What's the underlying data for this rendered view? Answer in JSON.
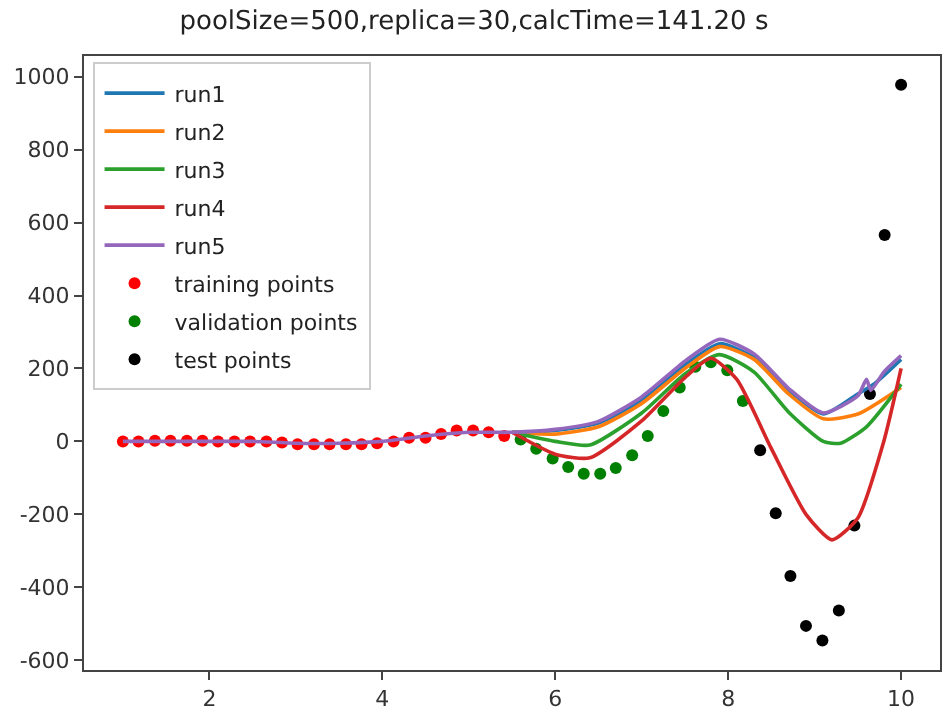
{
  "chart_data": {
    "type": "line",
    "title": "poolSize=500,replica=30,calcTime=141.20 s",
    "xlim": [
      0.55,
      10.45
    ],
    "ylim": [
      -627,
      1057
    ],
    "xticks": [
      2,
      4,
      6,
      8,
      10
    ],
    "yticks": [
      -600,
      -400,
      -200,
      0,
      200,
      400,
      600,
      800,
      1000
    ],
    "legend": "top left",
    "line_style": "solid",
    "series": [
      {
        "name": "run1",
        "color": "#1f77b4",
        "x": [
          5.5,
          6,
          6.5,
          7,
          7.5,
          7.9,
          8.3,
          8.7,
          9.1,
          9.5,
          9.7,
          10
        ],
        "values": [
          25,
          30,
          50,
          113,
          210,
          268,
          230,
          140,
          75,
          130,
          160,
          225
        ]
      },
      {
        "name": "run2",
        "color": "#ff7f0e",
        "x": [
          5.5,
          6,
          6.5,
          7,
          7.5,
          7.9,
          8.3,
          8.7,
          9.1,
          9.5,
          10
        ],
        "values": [
          25,
          20,
          40,
          104,
          200,
          260,
          225,
          130,
          62,
          75,
          148
        ]
      },
      {
        "name": "run3",
        "color": "#2ca02c",
        "x": [
          5.5,
          6,
          6.4,
          7,
          7.5,
          7.9,
          8.3,
          8.7,
          9.1,
          9.3,
          9.6,
          10
        ],
        "values": [
          25,
          0,
          -10,
          78,
          185,
          238,
          190,
          80,
          0,
          -5,
          40,
          157
        ]
      },
      {
        "name": "run4",
        "color": "#d62728",
        "x": [
          5.5,
          6,
          6.4,
          7,
          7.5,
          7.8,
          8.1,
          8.5,
          8.9,
          9.2,
          9.5,
          9.8,
          10
        ],
        "values": [
          25,
          -35,
          -45,
          56,
          175,
          228,
          170,
          -20,
          -200,
          -270,
          -210,
          0,
          200
        ]
      },
      {
        "name": "run5",
        "color": "#9467bd",
        "x": [
          1,
          1.5,
          2,
          2.5,
          3,
          3.5,
          4,
          4.5,
          5,
          5.5,
          6,
          6.5,
          7,
          7.5,
          7.9,
          8.3,
          8.7,
          9.1,
          9.5,
          9.6,
          9.65,
          9.8,
          10
        ],
        "values": [
          0,
          0,
          0,
          0,
          -5,
          -5,
          0,
          15,
          25,
          25,
          33,
          55,
          122,
          220,
          280,
          240,
          145,
          78,
          125,
          170,
          140,
          190,
          235
        ]
      },
      {
        "name": "training points",
        "type": "scatter",
        "marker": "circle",
        "color": "#ff0000",
        "x": [
          1,
          1.18,
          1.37,
          1.55,
          1.74,
          1.92,
          2.1,
          2.29,
          2.47,
          2.66,
          2.84,
          3.02,
          3.21,
          3.39,
          3.58,
          3.76,
          3.94,
          4.13,
          4.31,
          4.5,
          4.68,
          4.86,
          5.05,
          5.23,
          5.41
        ],
        "values": [
          0,
          0,
          2,
          2,
          2,
          2,
          0,
          0,
          0,
          0,
          -3,
          -8,
          -8,
          -8,
          -8,
          -8,
          -5,
          0,
          10,
          10,
          20,
          30,
          30,
          25,
          15
        ]
      },
      {
        "name": "validation points",
        "type": "scatter",
        "marker": "circle",
        "color": "#008000",
        "x": [
          5.6,
          5.78,
          5.97,
          6.15,
          6.33,
          6.52,
          6.7,
          6.89,
          7.07,
          7.25,
          7.44,
          7.62,
          7.8,
          7.99,
          8.17
        ],
        "values": [
          5,
          -20,
          -47,
          -70,
          -89,
          -89,
          -73,
          -38,
          15,
          83,
          148,
          205,
          217,
          195,
          111
        ]
      },
      {
        "name": "test points",
        "type": "scatter",
        "marker": "circle",
        "color": "#000000",
        "x": [
          8.37,
          8.55,
          8.72,
          8.9,
          9.09,
          9.28,
          9.46,
          9.64,
          9.81,
          10
        ],
        "values": [
          -24,
          -197,
          -369,
          -506,
          -546,
          -464,
          -231,
          130,
          566,
          978
        ]
      }
    ]
  }
}
